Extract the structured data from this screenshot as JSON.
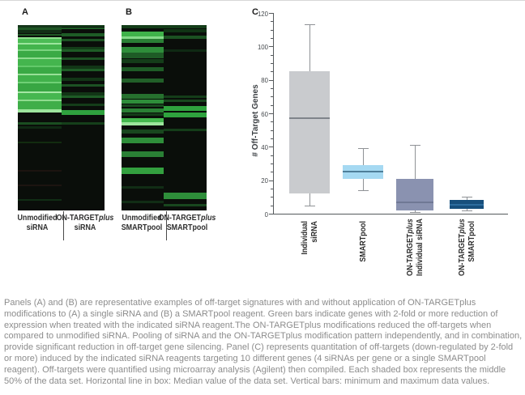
{
  "panel_labels": {
    "a": "A",
    "b": "B",
    "c": "C"
  },
  "heatmap_a": {
    "columns": [
      {
        "label_lines": [
          [
            {
              "t": "Unmodified"
            }
          ],
          [
            {
              "t": "siRNA"
            }
          ]
        ],
        "bands": [
          [
            0,
            1.4,
            "#15361a"
          ],
          [
            1.5,
            1.0,
            "#1e5524"
          ],
          [
            2.7,
            1.6,
            "#112d15"
          ],
          [
            4.6,
            1.1,
            "#1e5524"
          ],
          [
            6.7,
            0.9,
            "#8ede8e"
          ],
          [
            7.6,
            2.0,
            "#4cbc55"
          ],
          [
            9.6,
            0.9,
            "#9ce59c"
          ],
          [
            10.5,
            2.6,
            "#43b44c"
          ],
          [
            13.1,
            0.9,
            "#7ad47f"
          ],
          [
            14.0,
            3.4,
            "#3aaa45"
          ],
          [
            17.4,
            0.9,
            "#8fdc8f"
          ],
          [
            18.3,
            3.4,
            "#44b54e"
          ],
          [
            21.7,
            1.1,
            "#63c96a"
          ],
          [
            22.8,
            3.3,
            "#3aa945"
          ],
          [
            26.1,
            0.9,
            "#98e098"
          ],
          [
            27.0,
            3.4,
            "#41b14b"
          ],
          [
            30.4,
            0.9,
            "#6fcf75"
          ],
          [
            31.3,
            4.4,
            "#38a643"
          ],
          [
            35.7,
            0.9,
            "#a5e6a5"
          ],
          [
            36.6,
            3.4,
            "#46b750"
          ],
          [
            40.0,
            0.9,
            "#8fdc8f"
          ],
          [
            40.9,
            4.3,
            "#3fae49"
          ],
          [
            45.2,
            1.8,
            "#9ce59c"
          ],
          [
            52.2,
            1.3,
            "#1a4d20"
          ],
          [
            54.8,
            0.9,
            "#0f2913"
          ],
          [
            63.0,
            0.9,
            "#122c0f"
          ],
          [
            78.3,
            0.9,
            "#1c1410"
          ],
          [
            86.0,
            0.9,
            "#1c1410"
          ],
          [
            94.0,
            0.9,
            "#112d15"
          ]
        ]
      },
      {
        "label_lines": [
          [
            {
              "t": "ON-TARGET"
            },
            {
              "t": "plus",
              "i": true
            }
          ],
          [
            {
              "t": "siRNA"
            }
          ]
        ],
        "bands": [
          [
            0,
            0.9,
            "#143d19"
          ],
          [
            1.1,
            1.1,
            "#1e5c26"
          ],
          [
            4.3,
            1.7,
            "#1e5c26"
          ],
          [
            7.6,
            1.1,
            "#1c5223"
          ],
          [
            11.7,
            1.3,
            "#143d19"
          ],
          [
            13.3,
            1.3,
            "#1e5c26"
          ],
          [
            17.4,
            1.5,
            "#1c5223"
          ],
          [
            21.7,
            1.7,
            "#123616"
          ],
          [
            23.5,
            1.5,
            "#1e5c26"
          ],
          [
            28.3,
            1.7,
            "#123616"
          ],
          [
            31.7,
            1.7,
            "#1c5223"
          ],
          [
            36.1,
            1.7,
            "#123616"
          ],
          [
            37.8,
            1.5,
            "#1e5c26"
          ],
          [
            42.2,
            1.5,
            "#143d19"
          ],
          [
            45.7,
            2.6,
            "#2fa23e"
          ],
          [
            52.2,
            1.3,
            "#153f1a"
          ]
        ]
      }
    ]
  },
  "heatmap_b": {
    "columns": [
      {
        "label_lines": [
          [
            {
              "t": "Unmodified"
            }
          ],
          [
            {
              "t": "SMARTpool"
            }
          ]
        ],
        "bands": [
          [
            0,
            1.7,
            "#143d19"
          ],
          [
            3.5,
            2.6,
            "#3fb24a"
          ],
          [
            6.1,
            1.5,
            "#86da8a"
          ],
          [
            7.6,
            2.0,
            "#2a8035"
          ],
          [
            11.7,
            3.0,
            "#2e8e3a"
          ],
          [
            14.8,
            3.0,
            "#1e5c26"
          ],
          [
            18.3,
            2.2,
            "#143d19"
          ],
          [
            22.6,
            2.2,
            "#1e5c26"
          ],
          [
            28.7,
            2.2,
            "#215f28"
          ],
          [
            37.0,
            2.6,
            "#26702e"
          ],
          [
            40.0,
            2.2,
            "#2e8e3a"
          ],
          [
            42.6,
            1.7,
            "#18471e"
          ],
          [
            44.8,
            2.2,
            "#2a8035"
          ],
          [
            47.4,
            1.7,
            "#143d19"
          ],
          [
            50.0,
            2.6,
            "#44b84e"
          ],
          [
            52.6,
            1.7,
            "#9ce59c"
          ],
          [
            56.5,
            2.2,
            "#18471e"
          ],
          [
            60.9,
            3.0,
            "#2e8e3a"
          ],
          [
            68.3,
            3.0,
            "#2a8035"
          ],
          [
            77.0,
            3.5,
            "#33a03f"
          ],
          [
            87.0,
            1.3,
            "#112d15"
          ],
          [
            94.8,
            1.3,
            "#112d15"
          ]
        ]
      },
      {
        "label_lines": [
          [
            {
              "t": "ON-TARGET"
            },
            {
              "t": "plus",
              "i": true
            }
          ],
          [
            {
              "t": "SMARTpool"
            }
          ]
        ],
        "bands": [
          [
            0,
            1.7,
            "#143d19"
          ],
          [
            2.2,
            1.7,
            "#103314"
          ],
          [
            5.7,
            1.7,
            "#1b5122"
          ],
          [
            13.0,
            1.3,
            "#0f2913"
          ],
          [
            37.8,
            1.3,
            "#143d19"
          ],
          [
            40.0,
            1.3,
            "#18471e"
          ],
          [
            43.5,
            2.6,
            "#2fa23e"
          ],
          [
            47.0,
            2.6,
            "#2fa23e"
          ],
          [
            55.7,
            1.7,
            "#143d19"
          ],
          [
            90.4,
            3.5,
            "#2e8e3a"
          ],
          [
            96.5,
            1.3,
            "#18471e"
          ]
        ]
      }
    ]
  },
  "chart_data": {
    "type": "box",
    "ylabel": "# Off-Target Genes",
    "ylim": [
      0,
      120
    ],
    "ytick_labels": [
      0,
      20,
      40,
      60,
      80,
      100,
      120
    ],
    "yminor_step": 5,
    "grid": false,
    "categories": [
      "Individual siRNA",
      "SMARTpool",
      "ON-TARGETplus Individual siRNA",
      "ON-TARGETplus SMARTpool"
    ],
    "category_lines": [
      [
        [
          {
            "t": "Individual"
          }
        ],
        [
          {
            "t": "siRNA"
          }
        ]
      ],
      [
        [
          {
            "t": "SMARTpool"
          }
        ]
      ],
      [
        [
          {
            "t": "ON-TARGET"
          },
          {
            "t": "plus",
            "i": true
          }
        ],
        [
          {
            "t": "Individual siRNA"
          }
        ]
      ],
      [
        [
          {
            "t": "ON-TARGET"
          },
          {
            "t": "plus",
            "i": true
          }
        ],
        [
          {
            "t": "SMARTpool"
          }
        ]
      ]
    ],
    "boxes": [
      {
        "min": 5,
        "q1": 12,
        "median": 57,
        "q3": 85,
        "max": 113,
        "fill": "#c9cbce",
        "median_color": "#7f848b"
      },
      {
        "min": 14,
        "q1": 21,
        "median": 25,
        "q3": 29,
        "max": 39,
        "fill": "#a5d9f2",
        "median_color": "#4e7e99"
      },
      {
        "min": 1,
        "q1": 2,
        "median": 7,
        "q3": 21,
        "max": 41,
        "fill": "#8a92b0",
        "median_color": "#6f7894"
      },
      {
        "min": 2,
        "q1": 3,
        "median": 5.5,
        "q3": 8,
        "max": 10,
        "fill": "#174f7c",
        "median_color": "#2d6d9e"
      }
    ],
    "whisker_color": "#8f9296",
    "axis_color": "#55595c"
  },
  "caption": "Panels (A) and (B) are representative examples of off-target signatures with and without application of ON-TARGETplus modifications to (A) a single siRNA and (B) a SMARTpool reagent. Green bars indicate genes with 2-fold or more reduction of expression when treated with the indicated siRNA reagent.The ON-TARGETplus modifications reduced the off-targets when compared to unmodified siRNA. Pooling of siRNA and the ON-TARGETplus modification pattern independently, and in combination, provide significant reduction in off-target gene silencing. Panel (C) represents quantitation of off-targets (down-regulated by 2-fold or more) induced by the indicated siRNA reagents targeting 10 different genes (4 siRNAs per gene or a single SMARTpool reagent). Off-targets were quantified using microarray analysis (Agilent) then compiled. Each shaded box represents the middle 50% of the data set. Horizontal line in box: Median value of the data set. Vertical bars: minimum and maximum data values."
}
